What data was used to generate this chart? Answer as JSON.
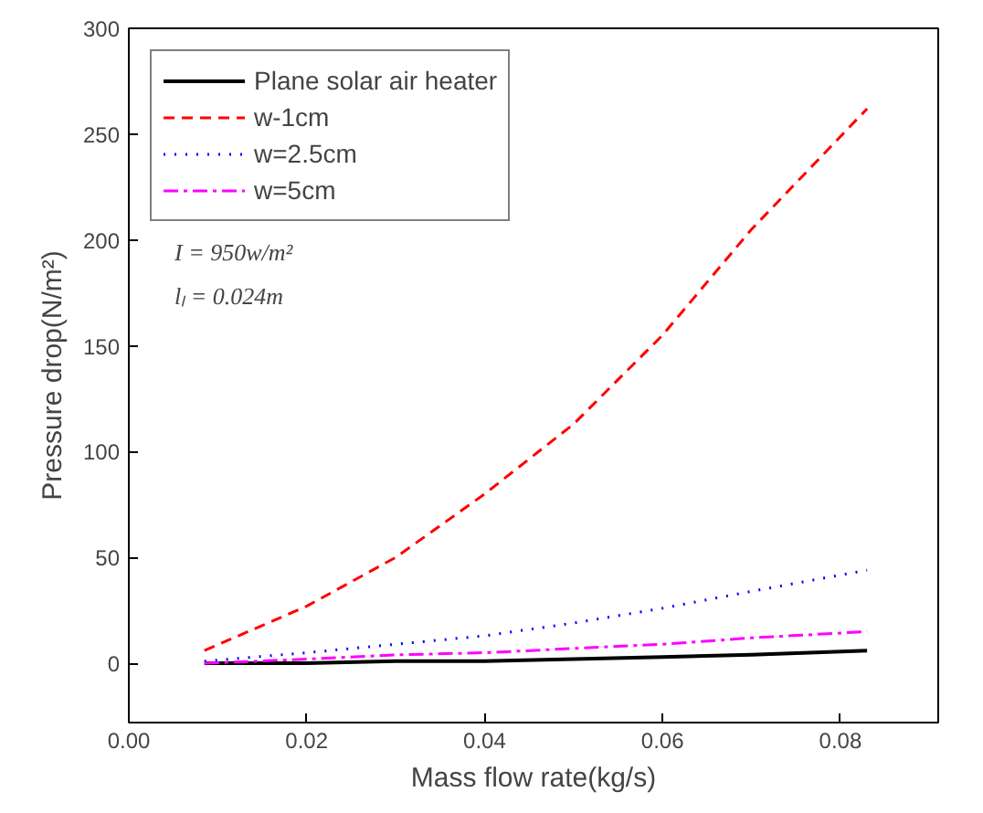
{
  "chart_data": {
    "type": "line",
    "xlabel": "Mass flow rate(kg/s)",
    "ylabel": "Pressure drop(N/m²)",
    "x": [
      0.0085,
      0.02,
      0.03,
      0.04,
      0.05,
      0.06,
      0.07,
      0.083
    ],
    "series": [
      {
        "name": "Plane solar air heater",
        "color": "#000000",
        "line_style": "solid",
        "values": [
          0,
          0,
          1,
          1,
          2,
          3,
          4,
          6
        ]
      },
      {
        "name": "w-1cm",
        "color": "#ff0000",
        "line_style": "dashed",
        "values": [
          6,
          27,
          50,
          80,
          113,
          155,
          205,
          262
        ]
      },
      {
        "name": "w=2.5cm",
        "color": "#0000ff",
        "line_style": "dotted",
        "values": [
          1,
          5,
          9,
          13,
          19,
          26,
          34,
          44
        ]
      },
      {
        "name": "w=5cm",
        "color": "#ff00ff",
        "line_style": "dashdot",
        "values": [
          0,
          2,
          4,
          5,
          7,
          9,
          12,
          15
        ]
      }
    ],
    "xlim": [
      0,
      0.091
    ],
    "ylim": [
      -28,
      300
    ],
    "xticks": [
      {
        "value": 0,
        "label": "0.00"
      },
      {
        "value": 0.02,
        "label": "0.02"
      },
      {
        "value": 0.04,
        "label": "0.04"
      },
      {
        "value": 0.06,
        "label": "0.06"
      },
      {
        "value": 0.08,
        "label": "0.08"
      }
    ],
    "yticks": [
      0,
      50,
      100,
      150,
      200,
      250,
      300
    ],
    "annotations": [
      "I = 950w/m²",
      "lₗ = 0.024m"
    ],
    "legend": "top left",
    "grid": false
  }
}
